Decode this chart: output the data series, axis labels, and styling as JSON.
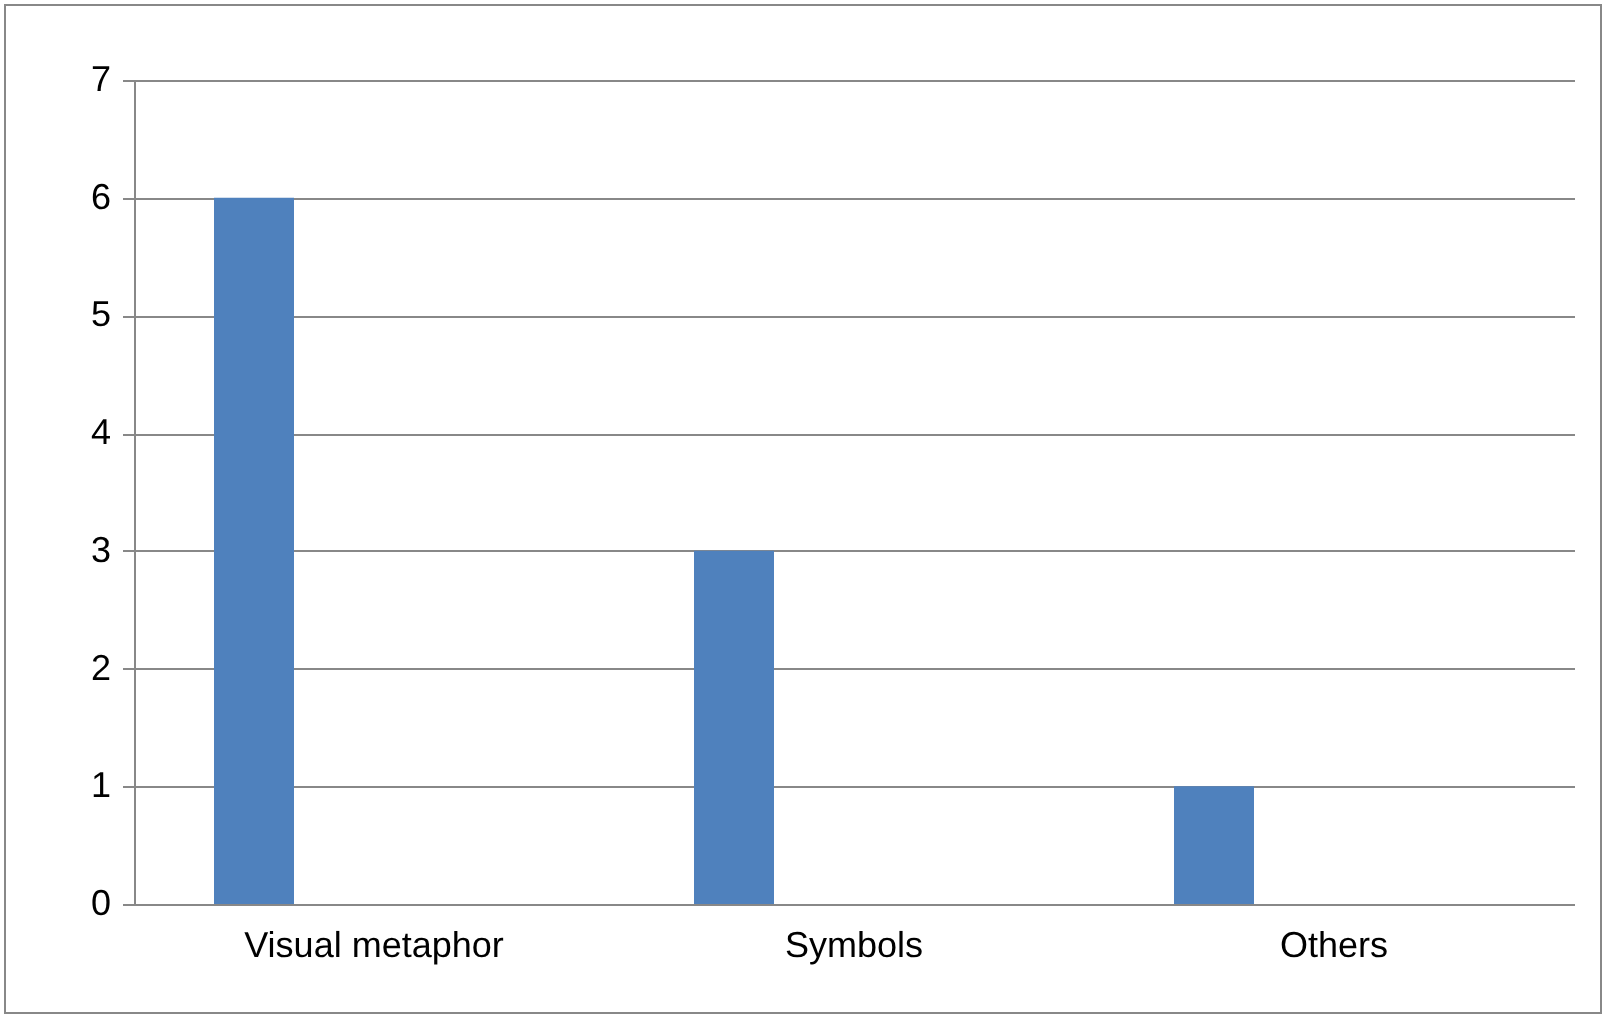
{
  "chart_data": {
    "type": "bar",
    "categories": [
      "Visual metaphor",
      "Symbols",
      "Others",
      null
    ],
    "values": [
      6,
      3,
      1,
      null
    ],
    "color": "#4f81bd",
    "ylim": [
      0,
      7
    ],
    "yticks": [
      0,
      1,
      2,
      3,
      4,
      5,
      6,
      7
    ],
    "grid": "y"
  }
}
